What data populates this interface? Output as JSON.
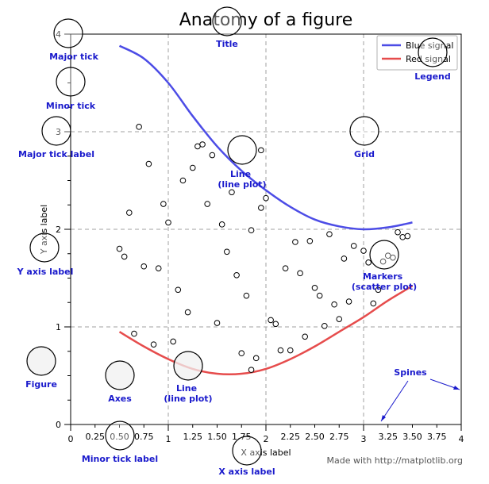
{
  "chart_data": {
    "type": "line",
    "title": "Anatomy of a figure",
    "xlabel": "X axis label",
    "ylabel": "Y axis label",
    "xlim": [
      0,
      4
    ],
    "ylim": [
      0,
      4
    ],
    "grid": true,
    "legend_position": "top-right",
    "major_xticks": [
      0,
      1,
      2,
      3,
      4
    ],
    "major_yticks": [
      0,
      1,
      2,
      3,
      4
    ],
    "major_xtick_labels": [
      "0",
      "1",
      "2",
      "3",
      "4"
    ],
    "major_ytick_labels": [
      "0",
      "1",
      "2",
      "3",
      "4"
    ],
    "minor_xticks": [
      0.25,
      0.5,
      0.75,
      1.25,
      1.5,
      1.75,
      2.25,
      2.5,
      2.75,
      3.25,
      3.5,
      3.75
    ],
    "minor_xtick_labels": [
      "0.25",
      "0.50",
      "0.75",
      "1.25",
      "1.50",
      "1.75",
      "2.25",
      "2.50",
      "2.75",
      "3.25",
      "3.50",
      "3.75"
    ],
    "minor_yticks": [
      0.25,
      0.5,
      0.75,
      1.25,
      1.5,
      1.75,
      2.25,
      2.5,
      2.75,
      3.25,
      3.5,
      3.75
    ],
    "series": [
      {
        "name": "Blue signal",
        "color": "#4c4ce6",
        "x": [
          0.5,
          0.75,
          1.0,
          1.25,
          1.5,
          1.75,
          2.0,
          2.25,
          2.5,
          2.75,
          3.0,
          3.25,
          3.5
        ],
        "y": [
          3.88,
          3.75,
          3.5,
          3.16,
          2.85,
          2.6,
          2.4,
          2.23,
          2.1,
          2.03,
          2.0,
          2.02,
          2.07
        ]
      },
      {
        "name": "Red signal",
        "color": "#e64c4c",
        "x": [
          0.5,
          0.75,
          1.0,
          1.25,
          1.5,
          1.75,
          2.0,
          2.25,
          2.5,
          2.75,
          3.0,
          3.25,
          3.5
        ],
        "y": [
          0.95,
          0.8,
          0.67,
          0.57,
          0.52,
          0.52,
          0.57,
          0.67,
          0.8,
          0.95,
          1.1,
          1.27,
          1.42
        ]
      }
    ],
    "scatter": {
      "name": "Markers",
      "x": [
        0.5,
        0.6,
        0.7,
        0.8,
        0.9,
        1.0,
        1.1,
        1.15,
        1.2,
        1.25,
        1.3,
        1.4,
        1.5,
        1.55,
        1.6,
        1.7,
        1.75,
        1.8,
        1.85,
        1.9,
        1.95,
        2.0,
        2.1,
        2.2,
        2.3,
        2.4,
        2.45,
        2.5,
        2.6,
        2.7,
        2.8,
        2.9,
        3.0,
        3.1,
        3.2,
        3.3,
        3.4,
        0.55,
        0.65,
        0.85,
        0.95,
        1.05,
        1.35,
        1.45,
        1.65,
        1.95,
        2.05,
        2.15,
        2.35,
        2.55,
        2.65,
        2.75,
        2.85,
        3.05,
        3.15,
        3.25,
        3.35,
        3.45,
        0.75,
        1.85,
        2.25
      ],
      "y": [
        1.8,
        2.17,
        3.05,
        2.67,
        1.6,
        2.07,
        1.38,
        2.5,
        1.15,
        2.63,
        2.85,
        2.26,
        1.04,
        2.05,
        1.77,
        1.53,
        0.73,
        1.32,
        1.99,
        0.68,
        2.22,
        2.32,
        1.03,
        1.6,
        1.87,
        0.9,
        1.88,
        1.4,
        1.01,
        1.23,
        1.7,
        1.83,
        1.78,
        1.24,
        1.67,
        1.71,
        1.92,
        1.72,
        0.93,
        0.82,
        2.26,
        0.85,
        2.87,
        2.76,
        2.38,
        2.81,
        1.07,
        0.76,
        1.55,
        1.32,
        1.95,
        1.08,
        1.26,
        1.66,
        1.38,
        1.73,
        1.97,
        1.93,
        1.62,
        0.56,
        0.76
      ]
    },
    "annotations": [
      "Major tick",
      "Minor tick",
      "Major tick label",
      "Title",
      "Legend",
      "Line\n(line plot)",
      "Grid",
      "Y axis label",
      "Markers\n(scatter plot)",
      "Figure",
      "Axes",
      "Line\n(line plot)",
      "Spines",
      "Minor tick label",
      "X axis label"
    ],
    "footer": "Made with http://matplotlib.org"
  },
  "colors": {
    "annotation": "#1a1acc",
    "grid": "#a0a0a0",
    "blue_line": "#4c4ce6",
    "red_line": "#e64c4c"
  }
}
